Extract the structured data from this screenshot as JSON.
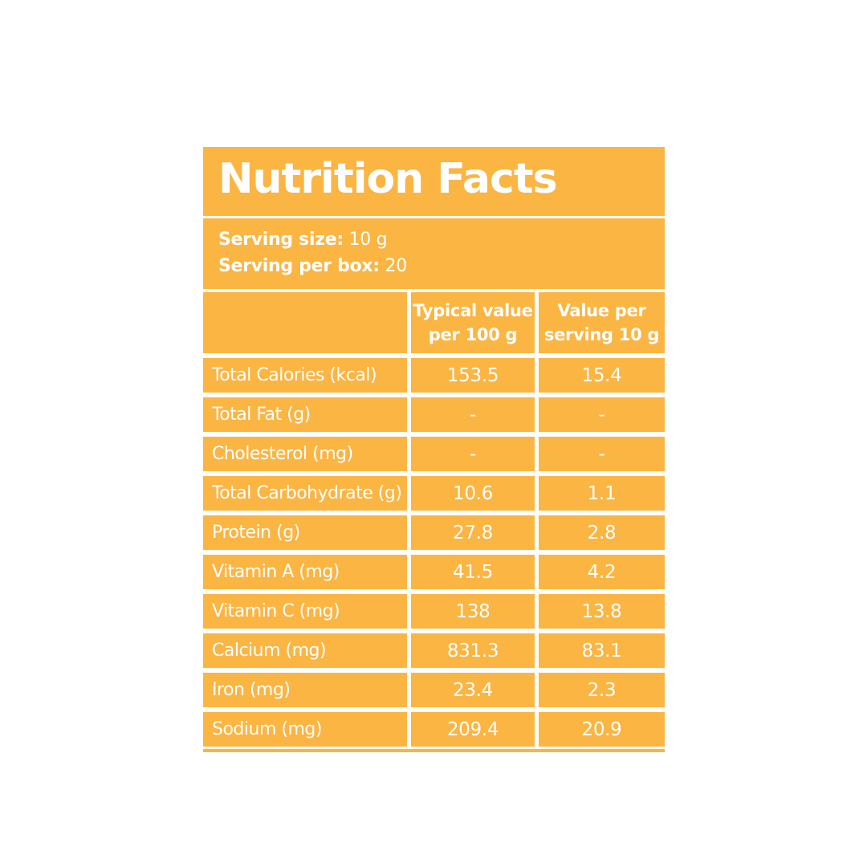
{
  "colors": {
    "accent_orange": "#FBB543",
    "text_white": "#FFFFFF",
    "page_background": "#FFFFFF"
  },
  "label": {
    "title": "Nutrition Facts",
    "serving": [
      {
        "label": "Serving size:",
        "value": "10 g"
      },
      {
        "label": "Serving per box:",
        "value": "20"
      }
    ],
    "table": {
      "headers": [
        {
          "line1": "Typical value",
          "line2": "per 100 g"
        },
        {
          "line1": "Value per",
          "line2": "serving 10 g"
        }
      ],
      "rows": [
        {
          "label": "Total Calories (kcal)",
          "per_100g": "153.5",
          "per_serving": "15.4"
        },
        {
          "label": "Total Fat (g)",
          "per_100g": "-",
          "per_serving": "-"
        },
        {
          "label": "Cholesterol (mg)",
          "per_100g": "-",
          "per_serving": "-"
        },
        {
          "label": "Total Carbohydrate (g)",
          "per_100g": "10.6",
          "per_serving": "1.1"
        },
        {
          "label": "Protein (g)",
          "per_100g": "27.8",
          "per_serving": "2.8"
        },
        {
          "label": "Vitamin A (mg)",
          "per_100g": "41.5",
          "per_serving": "4.2"
        },
        {
          "label": "Vitamin C (mg)",
          "per_100g": "138",
          "per_serving": "13.8"
        },
        {
          "label": "Calcium (mg)",
          "per_100g": "831.3",
          "per_serving": "83.1"
        },
        {
          "label": "Iron (mg)",
          "per_100g": "23.4",
          "per_serving": "2.3"
        },
        {
          "label": "Sodium (mg)",
          "per_100g": "209.4",
          "per_serving": "20.9"
        }
      ]
    }
  }
}
